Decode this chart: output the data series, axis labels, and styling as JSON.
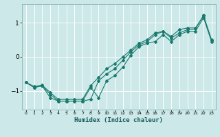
{
  "xlabel": "Humidex (Indice chaleur)",
  "ylabel": "",
  "bg_color": "#cce8e8",
  "grid_color": "#ffffff",
  "line_color": "#1a7a6e",
  "xlim": [
    -0.5,
    23.5
  ],
  "ylim": [
    -1.55,
    1.55
  ],
  "yticks": [
    -1,
    0,
    1
  ],
  "xticks": [
    0,
    1,
    2,
    3,
    4,
    5,
    6,
    7,
    8,
    9,
    10,
    11,
    12,
    13,
    14,
    15,
    16,
    17,
    18,
    19,
    20,
    21,
    22,
    23
  ],
  "series": [
    {
      "x": [
        0,
        1,
        2,
        3,
        4,
        5,
        6,
        7,
        8,
        9,
        10,
        11,
        12,
        13,
        14,
        15,
        16,
        17,
        18,
        19,
        20,
        21,
        22,
        23
      ],
      "y": [
        -0.75,
        -0.9,
        -0.85,
        -1.2,
        -1.3,
        -1.3,
        -1.3,
        -1.3,
        -0.9,
        -1.2,
        -0.7,
        -0.55,
        -0.3,
        0.05,
        0.3,
        0.4,
        0.45,
        0.65,
        0.45,
        0.65,
        0.75,
        0.75,
        1.15,
        0.45
      ]
    },
    {
      "x": [
        0,
        1,
        2,
        3,
        4,
        5,
        6,
        7,
        8,
        9,
        10,
        11,
        12,
        13,
        14,
        15,
        16,
        17,
        18,
        19,
        20,
        21,
        22,
        23
      ],
      "y": [
        -0.75,
        -0.9,
        -0.85,
        -1.1,
        -1.3,
        -1.3,
        -1.3,
        -1.3,
        -1.25,
        -0.7,
        -0.5,
        -0.35,
        -0.1,
        0.15,
        0.35,
        0.45,
        0.65,
        0.75,
        0.6,
        0.8,
        0.85,
        0.85,
        1.2,
        0.5
      ]
    },
    {
      "x": [
        0,
        1,
        2,
        3,
        4,
        5,
        6,
        7,
        8,
        9,
        10,
        11,
        12,
        13,
        14,
        15,
        16,
        17,
        18,
        19,
        20,
        21,
        22,
        23
      ],
      "y": [
        -0.75,
        -0.87,
        -0.83,
        -1.05,
        -1.25,
        -1.25,
        -1.25,
        -1.25,
        -0.85,
        -0.6,
        -0.35,
        -0.2,
        0.0,
        0.2,
        0.4,
        0.5,
        0.7,
        0.75,
        0.55,
        0.7,
        0.8,
        0.82,
        1.22,
        0.48
      ]
    }
  ]
}
